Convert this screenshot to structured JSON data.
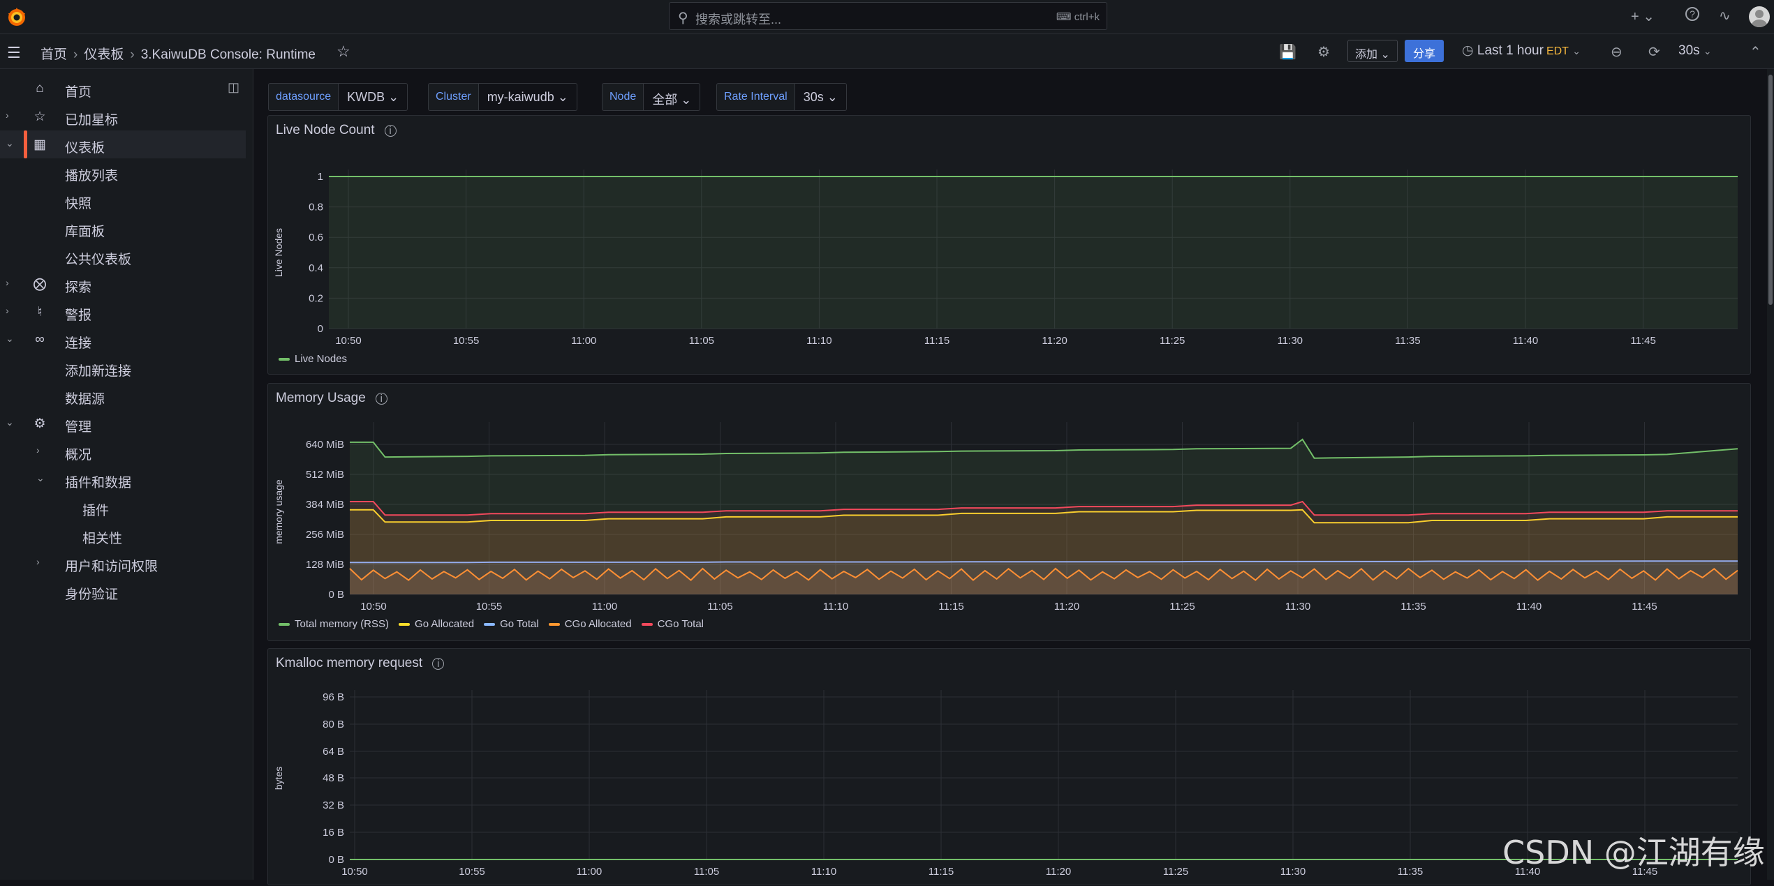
{
  "app": {
    "accent": "#f55f3e",
    "link_color": "#6e9fff",
    "primary_button_color": "#3d71d9"
  },
  "topbar": {
    "search_placeholder": "搜索或跳转至...",
    "search_shortcut": "ctrl+k",
    "icons": [
      "grafana-logo-icon",
      "search-icon",
      "plus-icon",
      "help-icon",
      "rss-icon",
      "avatar"
    ]
  },
  "navbar": {
    "breadcrumbs": [
      "首页",
      "仪表板",
      "3.KaiwuDB Console: Runtime"
    ],
    "add_label": "添加",
    "share_label": "分享",
    "time_range": "Last 1 hour",
    "timezone": "EDT",
    "refresh_interval": "30s"
  },
  "sidebar": {
    "items": [
      {
        "label": "首页",
        "icon": "home-icon"
      },
      {
        "label": "已加星标",
        "icon": "star-icon"
      },
      {
        "label": "仪表板",
        "icon": "dashboards-icon"
      },
      {
        "label": "播放列表"
      },
      {
        "label": "快照"
      },
      {
        "label": "库面板"
      },
      {
        "label": "公共仪表板"
      },
      {
        "label": "探索",
        "icon": "compass-icon"
      },
      {
        "label": "警报",
        "icon": "bell-icon"
      },
      {
        "label": "连接",
        "icon": "connections-icon"
      },
      {
        "label": "添加新连接"
      },
      {
        "label": "数据源"
      },
      {
        "label": "管理",
        "icon": "gear-icon"
      },
      {
        "label": "概况"
      },
      {
        "label": "插件和数据"
      },
      {
        "label": "插件"
      },
      {
        "label": "相关性"
      },
      {
        "label": "用户和访问权限"
      },
      {
        "label": "身份验证"
      }
    ]
  },
  "variables": [
    {
      "label": "datasource",
      "value": "KWDB"
    },
    {
      "label": "Cluster",
      "value": "my-kaiwudb"
    },
    {
      "label": "Node",
      "value": "全部"
    },
    {
      "label": "Rate Interval",
      "value": "30s"
    }
  ],
  "panels": [
    {
      "title": "Live Node Count"
    },
    {
      "title": "Memory Usage"
    },
    {
      "title": "Kmalloc memory request"
    }
  ],
  "chart_data": [
    {
      "type": "line",
      "title": "Live Node Count",
      "ylabel": "Live Nodes",
      "ylim": [
        0,
        1
      ],
      "yticks": [
        "0",
        "0.2",
        "0.4",
        "0.6",
        "0.8",
        "1"
      ],
      "xticks": [
        "10:50",
        "10:55",
        "11:00",
        "11:05",
        "11:10",
        "11:15",
        "11:20",
        "11:25",
        "11:30",
        "11:35",
        "11:40",
        "11:45"
      ],
      "series": [
        {
          "name": "Live Nodes",
          "color": "#73bf69",
          "x": [
            "10:49",
            "11:48"
          ],
          "values": [
            1,
            1
          ]
        }
      ]
    },
    {
      "type": "line",
      "title": "Memory Usage",
      "ylabel": "memory usage",
      "ylim": [
        0,
        704
      ],
      "yticks": [
        "0 B",
        "128 MiB",
        "256 MiB",
        "384 MiB",
        "512 MiB",
        "640 MiB"
      ],
      "xticks": [
        "10:50",
        "10:55",
        "11:00",
        "11:05",
        "11:10",
        "11:15",
        "11:20",
        "11:25",
        "11:30",
        "11:35",
        "11:40",
        "11:45"
      ],
      "x_minutes_after_1049": [
        0,
        1,
        1.5,
        5,
        6,
        10,
        11,
        15,
        16,
        20,
        21,
        25,
        26,
        30,
        31,
        35,
        36,
        40,
        40.5,
        41,
        45,
        46,
        50,
        51,
        55,
        56,
        59
      ],
      "series": [
        {
          "name": "Total memory (RSS)",
          "color": "#73bf69",
          "values": [
            648,
            648,
            585,
            588,
            590,
            592,
            595,
            597,
            600,
            602,
            605,
            608,
            610,
            612,
            615,
            617,
            620,
            622,
            660,
            580,
            585,
            588,
            590,
            592,
            594,
            596,
            620
          ]
        },
        {
          "name": "Go Allocated",
          "color": "#fade2a",
          "values": [
            360,
            360,
            308,
            308,
            315,
            315,
            322,
            322,
            330,
            330,
            337,
            337,
            345,
            345,
            352,
            352,
            358,
            358,
            360,
            305,
            305,
            315,
            315,
            322,
            322,
            330,
            330
          ]
        },
        {
          "name": "Go Total",
          "color": "#8ab8ff",
          "values": [
            136,
            136,
            136,
            136,
            137,
            137,
            137,
            137,
            138,
            138,
            138,
            138,
            139,
            139,
            139,
            139,
            140,
            140,
            140,
            140,
            140,
            141,
            141,
            141,
            142,
            142,
            142
          ]
        },
        {
          "name": "CGo Allocated",
          "color": "#ff9830",
          "oscillating": {
            "min": 60,
            "max": 110,
            "period_minutes": 1
          }
        },
        {
          "name": "CGo Total",
          "color": "#f2495c",
          "values": [
            395,
            395,
            338,
            338,
            344,
            344,
            350,
            350,
            356,
            356,
            362,
            362,
            368,
            368,
            374,
            374,
            380,
            380,
            395,
            338,
            338,
            344,
            344,
            350,
            350,
            356,
            356
          ]
        }
      ]
    },
    {
      "type": "line",
      "title": "Kmalloc memory request",
      "ylabel": "bytes",
      "ylim": [
        0,
        96
      ],
      "yticks": [
        "0 B",
        "16 B",
        "32 B",
        "48 B",
        "64 B",
        "80 B",
        "96 B"
      ],
      "xticks": [
        "10:50",
        "10:55",
        "11:00",
        "11:05",
        "11:10",
        "11:15",
        "11:20",
        "11:25",
        "11:30",
        "11:35",
        "11:40",
        "11:45"
      ],
      "series": [
        {
          "color": "#73bf69",
          "x": [
            "10:49",
            "11:48"
          ],
          "values": [
            0,
            0
          ]
        }
      ]
    }
  ],
  "watermark": "CSDN @江湖有缘"
}
